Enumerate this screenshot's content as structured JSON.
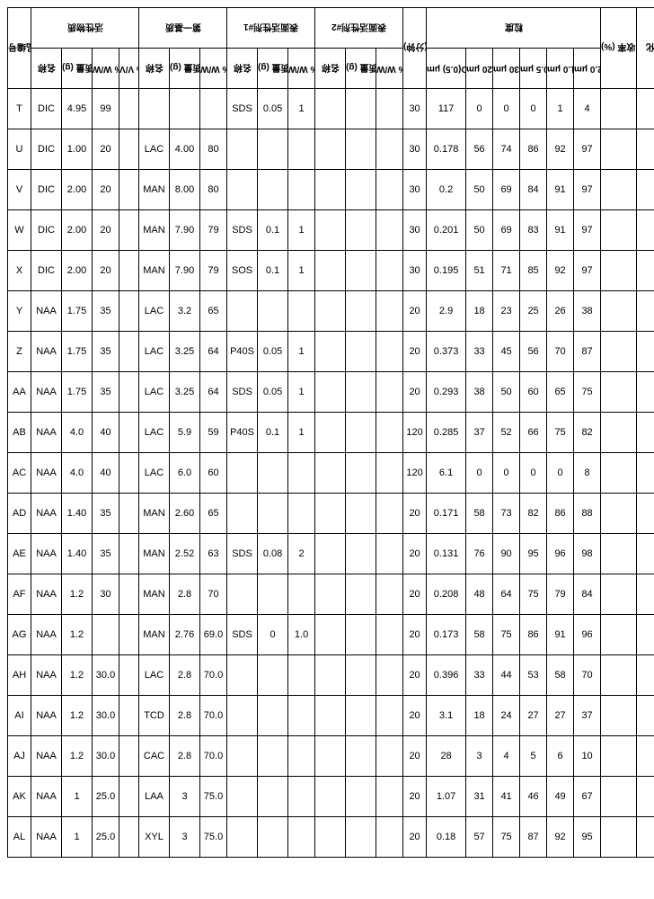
{
  "headers": {
    "sampleId": "样品编号",
    "active": "活性物质",
    "matrix": "第一基质",
    "surf1": "表面活性剂#1",
    "surf2": "表面活性剂#2",
    "time": "时间 (分钟)",
    "psd": "粒度",
    "recovery": "收率 (%)",
    "change": "变化",
    "name": "名称",
    "qty": "质量 (g)",
    "ww": "% W/W",
    "vv": "% V/V",
    "d05": "D(0.5) μm",
    "p020": "% <0.20 μm",
    "p030": "% <0.30 μm",
    "p05": "% < 0.5 μm",
    "p10": "% < 1.0 μm",
    "p20": "% < 2.0 μm"
  },
  "rows": [
    {
      "id": "T",
      "a_nm": "DIC",
      "a_q": "4.95",
      "a_ww": "99",
      "a_vv": "",
      "m_nm": "",
      "m_q": "",
      "m_ww": "",
      "s1_nm": "SDS",
      "s1_q": "0.05",
      "s1_ww": "1",
      "s2_nm": "",
      "s2_q": "",
      "s2_ww": "",
      "tm": "30",
      "d05": "117",
      "p020": "0",
      "p030": "0",
      "p05": "0",
      "p10": "1",
      "p20": "4"
    },
    {
      "id": "U",
      "a_nm": "DIC",
      "a_q": "1.00",
      "a_ww": "20",
      "a_vv": "",
      "m_nm": "LAC",
      "m_q": "4.00",
      "m_ww": "80",
      "s1_nm": "",
      "s1_q": "",
      "s1_ww": "",
      "s2_nm": "",
      "s2_q": "",
      "s2_ww": "",
      "tm": "30",
      "d05": "0.178",
      "p020": "56",
      "p030": "74",
      "p05": "86",
      "p10": "92",
      "p20": "97"
    },
    {
      "id": "V",
      "a_nm": "DIC",
      "a_q": "2.00",
      "a_ww": "20",
      "a_vv": "",
      "m_nm": "MAN",
      "m_q": "8.00",
      "m_ww": "80",
      "s1_nm": "",
      "s1_q": "",
      "s1_ww": "",
      "s2_nm": "",
      "s2_q": "",
      "s2_ww": "",
      "tm": "30",
      "d05": "0.2",
      "p020": "50",
      "p030": "69",
      "p05": "84",
      "p10": "91",
      "p20": "97"
    },
    {
      "id": "W",
      "a_nm": "DIC",
      "a_q": "2.00",
      "a_ww": "20",
      "a_vv": "",
      "m_nm": "MAN",
      "m_q": "7.90",
      "m_ww": "79",
      "s1_nm": "SDS",
      "s1_q": "0.1",
      "s1_ww": "1",
      "s2_nm": "",
      "s2_q": "",
      "s2_ww": "",
      "tm": "30",
      "d05": "0.201",
      "p020": "50",
      "p030": "69",
      "p05": "83",
      "p10": "91",
      "p20": "97"
    },
    {
      "id": "X",
      "a_nm": "DIC",
      "a_q": "2.00",
      "a_ww": "20",
      "a_vv": "",
      "m_nm": "MAN",
      "m_q": "7.90",
      "m_ww": "79",
      "s1_nm": "SOS",
      "s1_q": "0.1",
      "s1_ww": "1",
      "s2_nm": "",
      "s2_q": "",
      "s2_ww": "",
      "tm": "30",
      "d05": "0.195",
      "p020": "51",
      "p030": "71",
      "p05": "85",
      "p10": "92",
      "p20": "97"
    },
    {
      "id": "Y",
      "a_nm": "NAA",
      "a_q": "1.75",
      "a_ww": "35",
      "a_vv": "",
      "m_nm": "LAC",
      "m_q": "3.2",
      "m_ww": "65",
      "s1_nm": "",
      "s1_q": "",
      "s1_ww": "",
      "s2_nm": "",
      "s2_q": "",
      "s2_ww": "",
      "tm": "20",
      "d05": "2.9",
      "p020": "18",
      "p030": "23",
      "p05": "25",
      "p10": "26",
      "p20": "38"
    },
    {
      "id": "Z",
      "a_nm": "NAA",
      "a_q": "1.75",
      "a_ww": "35",
      "a_vv": "",
      "m_nm": "LAC",
      "m_q": "3.25",
      "m_ww": "64",
      "s1_nm": "P40S",
      "s1_q": "0.05",
      "s1_ww": "1",
      "s2_nm": "",
      "s2_q": "",
      "s2_ww": "",
      "tm": "20",
      "d05": "0.373",
      "p020": "33",
      "p030": "45",
      "p05": "56",
      "p10": "70",
      "p20": "87"
    },
    {
      "id": "AA",
      "a_nm": "NAA",
      "a_q": "1.75",
      "a_ww": "35",
      "a_vv": "",
      "m_nm": "LAC",
      "m_q": "3.25",
      "m_ww": "64",
      "s1_nm": "SDS",
      "s1_q": "0.05",
      "s1_ww": "1",
      "s2_nm": "",
      "s2_q": "",
      "s2_ww": "",
      "tm": "20",
      "d05": "0.293",
      "p020": "38",
      "p030": "50",
      "p05": "60",
      "p10": "65",
      "p20": "75"
    },
    {
      "id": "AB",
      "a_nm": "NAA",
      "a_q": "4.0",
      "a_ww": "40",
      "a_vv": "",
      "m_nm": "LAC",
      "m_q": "5.9",
      "m_ww": "59",
      "s1_nm": "P40S",
      "s1_q": "0.1",
      "s1_ww": "1",
      "s2_nm": "",
      "s2_q": "",
      "s2_ww": "",
      "tm": "120",
      "d05": "0.285",
      "p020": "37",
      "p030": "52",
      "p05": "66",
      "p10": "75",
      "p20": "82"
    },
    {
      "id": "AC",
      "a_nm": "NAA",
      "a_q": "4.0",
      "a_ww": "40",
      "a_vv": "",
      "m_nm": "LAC",
      "m_q": "6.0",
      "m_ww": "60",
      "s1_nm": "",
      "s1_q": "",
      "s1_ww": "",
      "s2_nm": "",
      "s2_q": "",
      "s2_ww": "",
      "tm": "120",
      "d05": "6.1",
      "p020": "0",
      "p030": "0",
      "p05": "0",
      "p10": "0",
      "p20": "8"
    },
    {
      "id": "AD",
      "a_nm": "NAA",
      "a_q": "1.40",
      "a_ww": "35",
      "a_vv": "",
      "m_nm": "MAN",
      "m_q": "2.60",
      "m_ww": "65",
      "s1_nm": "",
      "s1_q": "",
      "s1_ww": "",
      "s2_nm": "",
      "s2_q": "",
      "s2_ww": "",
      "tm": "20",
      "d05": "0.171",
      "p020": "58",
      "p030": "73",
      "p05": "82",
      "p10": "86",
      "p20": "88"
    },
    {
      "id": "AE",
      "a_nm": "NAA",
      "a_q": "1.40",
      "a_ww": "35",
      "a_vv": "",
      "m_nm": "MAN",
      "m_q": "2.52",
      "m_ww": "63",
      "s1_nm": "SDS",
      "s1_q": "0.08",
      "s1_ww": "2",
      "s2_nm": "",
      "s2_q": "",
      "s2_ww": "",
      "tm": "20",
      "d05": "0.131",
      "p020": "76",
      "p030": "90",
      "p05": "95",
      "p10": "96",
      "p20": "98"
    },
    {
      "id": "AF",
      "a_nm": "NAA",
      "a_q": "1.2",
      "a_ww": "30",
      "a_vv": "",
      "m_nm": "MAN",
      "m_q": "2.8",
      "m_ww": "70",
      "s1_nm": "",
      "s1_q": "",
      "s1_ww": "",
      "s2_nm": "",
      "s2_q": "",
      "s2_ww": "",
      "tm": "20",
      "d05": "0.208",
      "p020": "48",
      "p030": "64",
      "p05": "75",
      "p10": "79",
      "p20": "84"
    },
    {
      "id": "AG",
      "a_nm": "NAA",
      "a_q": "1.2",
      "a_ww": "",
      "a_vv": "",
      "m_nm": "MAN",
      "m_q": "2.76",
      "m_ww": "69.0",
      "s1_nm": "SDS",
      "s1_q": "0",
      "s1_ww": "1.0",
      "s2_nm": "",
      "s2_q": "",
      "s2_ww": "",
      "tm": "20",
      "d05": "0.173",
      "p020": "58",
      "p030": "75",
      "p05": "86",
      "p10": "91",
      "p20": "96"
    },
    {
      "id": "AH",
      "a_nm": "NAA",
      "a_q": "1.2",
      "a_ww": "30.0",
      "a_vv": "",
      "m_nm": "LAC",
      "m_q": "2.8",
      "m_ww": "70.0",
      "s1_nm": "",
      "s1_q": "",
      "s1_ww": "",
      "s2_nm": "",
      "s2_q": "",
      "s2_ww": "",
      "tm": "20",
      "d05": "0.396",
      "p020": "33",
      "p030": "44",
      "p05": "53",
      "p10": "58",
      "p20": "70"
    },
    {
      "id": "AI",
      "a_nm": "NAA",
      "a_q": "1.2",
      "a_ww": "30.0",
      "a_vv": "",
      "m_nm": "TCD",
      "m_q": "2.8",
      "m_ww": "70.0",
      "s1_nm": "",
      "s1_q": "",
      "s1_ww": "",
      "s2_nm": "",
      "s2_q": "",
      "s2_ww": "",
      "tm": "20",
      "d05": "3.1",
      "p020": "18",
      "p030": "24",
      "p05": "27",
      "p10": "27",
      "p20": "37"
    },
    {
      "id": "AJ",
      "a_nm": "NAA",
      "a_q": "1.2",
      "a_ww": "30.0",
      "a_vv": "",
      "m_nm": "CAC",
      "m_q": "2.8",
      "m_ww": "70.0",
      "s1_nm": "",
      "s1_q": "",
      "s1_ww": "",
      "s2_nm": "",
      "s2_q": "",
      "s2_ww": "",
      "tm": "20",
      "d05": "28",
      "p020": "3",
      "p030": "4",
      "p05": "5",
      "p10": "6",
      "p20": "10"
    },
    {
      "id": "AK",
      "a_nm": "NAA",
      "a_q": "1",
      "a_ww": "25.0",
      "a_vv": "",
      "m_nm": "LAA",
      "m_q": "3",
      "m_ww": "75.0",
      "s1_nm": "",
      "s1_q": "",
      "s1_ww": "",
      "s2_nm": "",
      "s2_q": "",
      "s2_ww": "",
      "tm": "20",
      "d05": "1.07",
      "p020": "31",
      "p030": "41",
      "p05": "46",
      "p10": "49",
      "p20": "67"
    },
    {
      "id": "AL",
      "a_nm": "NAA",
      "a_q": "1",
      "a_ww": "25.0",
      "a_vv": "",
      "m_nm": "XYL",
      "m_q": "3",
      "m_ww": "75.0",
      "s1_nm": "",
      "s1_q": "",
      "s1_ww": "",
      "s2_nm": "",
      "s2_q": "",
      "s2_ww": "",
      "tm": "20",
      "d05": "0.18",
      "p020": "57",
      "p030": "75",
      "p05": "87",
      "p10": "92",
      "p20": "95"
    }
  ],
  "style": {
    "border_color": "#000000",
    "bg_color": "#ffffff",
    "font_size_header": 10,
    "font_size_cell": 11
  }
}
